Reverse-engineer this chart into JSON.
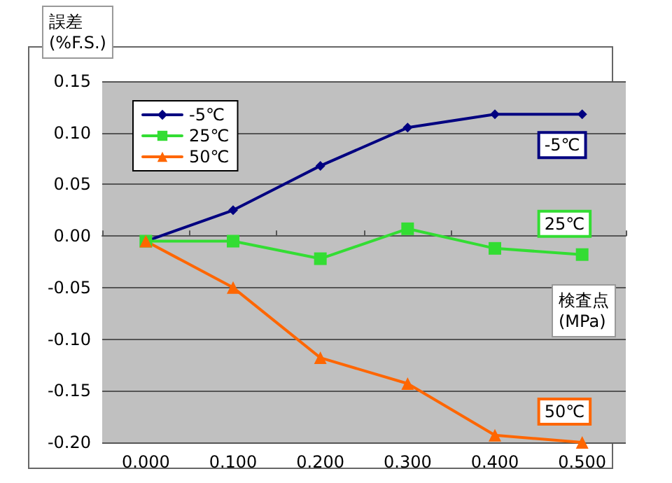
{
  "chart_data": {
    "type": "line",
    "xlabel": "検査点\n(MPa)",
    "ylabel": "誤差\n(%F.S.)",
    "categories": [
      "0.000",
      "0.100",
      "0.200",
      "0.300",
      "0.400",
      "0.500"
    ],
    "series": [
      {
        "name": "-5℃",
        "color": "#000080",
        "marker": "diamond",
        "values": [
          -0.005,
          0.025,
          0.068,
          0.105,
          0.118,
          0.118
        ]
      },
      {
        "name": "25℃",
        "color": "#33dd33",
        "marker": "square",
        "values": [
          -0.005,
          -0.005,
          -0.022,
          0.007,
          -0.012,
          -0.018
        ]
      },
      {
        "name": "50℃",
        "color": "#ff6600",
        "marker": "triangle",
        "values": [
          -0.005,
          -0.05,
          -0.118,
          -0.143,
          -0.193,
          -0.2
        ]
      }
    ],
    "ylim": [
      -0.2,
      0.15
    ],
    "yticks": [
      {
        "value": -0.2,
        "label": "-0.20"
      },
      {
        "value": -0.15,
        "label": "-0.15"
      },
      {
        "value": -0.1,
        "label": "-0.10"
      },
      {
        "value": -0.05,
        "label": "-0.05"
      },
      {
        "value": 0,
        "label": "0.00"
      },
      {
        "value": 0.05,
        "label": "0.05"
      },
      {
        "value": 0.1,
        "label": "0.10"
      },
      {
        "value": 0.15,
        "label": "0.15"
      }
    ],
    "grid": "y",
    "legend": "top left",
    "line_style": "solid"
  }
}
